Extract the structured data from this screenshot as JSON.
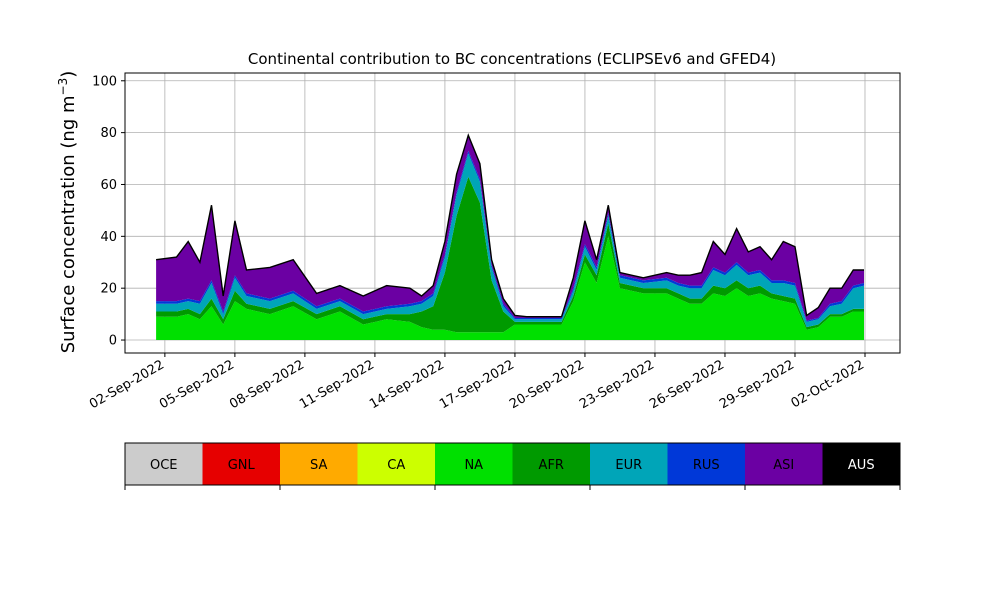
{
  "chart_data": {
    "type": "area",
    "stacked": true,
    "title": "Continental contribution to BC concentrations (ECLIPSEv6 and GFED4)",
    "ylabel_text": "Surface concentration (ng m",
    "ylabel_sup": "−3",
    "ylabel_close": ")",
    "xlabel": "",
    "ylim": [
      -5,
      103
    ],
    "xlim": [
      "2022-08-31T07:00",
      "2022-10-03T12:00"
    ],
    "x_start": "2022-09-01T15:00",
    "x_end": "2022-10-01T23:00",
    "y_ticks": [
      0,
      20,
      40,
      60,
      80,
      100
    ],
    "y_tick_labels": [
      "0",
      "20",
      "40",
      "60",
      "80",
      "100"
    ],
    "x_ticks": [
      "2022-09-02",
      "2022-09-05",
      "2022-09-08",
      "2022-09-11",
      "2022-09-14",
      "2022-09-17",
      "2022-09-20",
      "2022-09-23",
      "2022-09-26",
      "2022-09-29",
      "2022-10-02"
    ],
    "x_tick_labels": [
      "02-Sep-2022",
      "05-Sep-2022",
      "08-Sep-2022",
      "11-Sep-2022",
      "14-Sep-2022",
      "17-Sep-2022",
      "20-Sep-2022",
      "23-Sep-2022",
      "26-Sep-2022",
      "29-Sep-2022",
      "02-Oct-2022"
    ],
    "grid": true,
    "total_line_color": "#000000",
    "series": [
      {
        "name": "NA",
        "color": "#00e000",
        "x": [
          "2022-09-01T15:00",
          "2022-09-02T12:00",
          "2022-09-03T00:00",
          "2022-09-03T12:00",
          "2022-09-04T00:00",
          "2022-09-04T12:00",
          "2022-09-05T00:00",
          "2022-09-05T12:00",
          "2022-09-06T12:00",
          "2022-09-07T12:00",
          "2022-09-08T12:00",
          "2022-09-09T12:00",
          "2022-09-10T12:00",
          "2022-09-11T12:00",
          "2022-09-12T12:00",
          "2022-09-13T00:00",
          "2022-09-13T12:00",
          "2022-09-14T00:00",
          "2022-09-14T12:00",
          "2022-09-15T00:00",
          "2022-09-15T12:00",
          "2022-09-16T00:00",
          "2022-09-16T12:00",
          "2022-09-17T00:00",
          "2022-09-17T12:00",
          "2022-09-18T12:00",
          "2022-09-19T00:00",
          "2022-09-19T12:00",
          "2022-09-20T00:00",
          "2022-09-20T12:00",
          "2022-09-21T00:00",
          "2022-09-21T12:00",
          "2022-09-22T12:00",
          "2022-09-23T12:00",
          "2022-09-24T00:00",
          "2022-09-24T12:00",
          "2022-09-25T00:00",
          "2022-09-25T12:00",
          "2022-09-26T00:00",
          "2022-09-26T12:00",
          "2022-09-27T00:00",
          "2022-09-27T12:00",
          "2022-09-28T00:00",
          "2022-09-28T12:00",
          "2022-09-29T00:00",
          "2022-09-29T12:00",
          "2022-09-30T00:00",
          "2022-09-30T12:00",
          "2022-10-01T00:00",
          "2022-10-01T12:00",
          "2022-10-01T23:00"
        ],
        "values": [
          9,
          9,
          10,
          8,
          13,
          6,
          15,
          12,
          10,
          13,
          8,
          11,
          6,
          8,
          7,
          5,
          4,
          4,
          3,
          3,
          3,
          3,
          3,
          6,
          6,
          6,
          6,
          15,
          30,
          22,
          40,
          20,
          18,
          18,
          16,
          14,
          14,
          18,
          17,
          20,
          17,
          18,
          16,
          15,
          14,
          4,
          5,
          9,
          9,
          11,
          11
        ]
      },
      {
        "name": "AFR",
        "color": "#009a00",
        "x": [
          "2022-09-01T15:00",
          "2022-09-02T12:00",
          "2022-09-03T00:00",
          "2022-09-03T12:00",
          "2022-09-04T00:00",
          "2022-09-04T12:00",
          "2022-09-05T00:00",
          "2022-09-05T12:00",
          "2022-09-06T12:00",
          "2022-09-07T12:00",
          "2022-09-08T12:00",
          "2022-09-09T12:00",
          "2022-09-10T12:00",
          "2022-09-11T12:00",
          "2022-09-12T12:00",
          "2022-09-13T00:00",
          "2022-09-13T12:00",
          "2022-09-14T00:00",
          "2022-09-14T12:00",
          "2022-09-15T00:00",
          "2022-09-15T12:00",
          "2022-09-16T00:00",
          "2022-09-16T12:00",
          "2022-09-17T00:00",
          "2022-09-17T12:00",
          "2022-09-18T12:00",
          "2022-09-19T00:00",
          "2022-09-19T12:00",
          "2022-09-20T00:00",
          "2022-09-20T12:00",
          "2022-09-21T00:00",
          "2022-09-21T12:00",
          "2022-09-22T12:00",
          "2022-09-23T12:00",
          "2022-09-24T00:00",
          "2022-09-24T12:00",
          "2022-09-25T00:00",
          "2022-09-25T12:00",
          "2022-09-26T00:00",
          "2022-09-26T12:00",
          "2022-09-27T00:00",
          "2022-09-27T12:00",
          "2022-09-28T00:00",
          "2022-09-28T12:00",
          "2022-09-29T00:00",
          "2022-09-29T12:00",
          "2022-09-30T00:00",
          "2022-09-30T12:00",
          "2022-10-01T00:00",
          "2022-10-01T12:00",
          "2022-10-01T23:00"
        ],
        "values": [
          2,
          2,
          2,
          2,
          3,
          2,
          4,
          2,
          2,
          2,
          2,
          2,
          2,
          2,
          3,
          6,
          9,
          22,
          45,
          60,
          50,
          20,
          8,
          1,
          1,
          1,
          1,
          2,
          3,
          3,
          5,
          2,
          2,
          2,
          2,
          2,
          2,
          3,
          3,
          3,
          3,
          3,
          2,
          2,
          2,
          1,
          1,
          1,
          1,
          1,
          1
        ]
      },
      {
        "name": "EUR",
        "color": "#00a5b8",
        "x": [
          "2022-09-01T15:00",
          "2022-09-02T12:00",
          "2022-09-03T00:00",
          "2022-09-03T12:00",
          "2022-09-04T00:00",
          "2022-09-04T12:00",
          "2022-09-05T00:00",
          "2022-09-05T12:00",
          "2022-09-06T12:00",
          "2022-09-07T12:00",
          "2022-09-08T12:00",
          "2022-09-09T12:00",
          "2022-09-10T12:00",
          "2022-09-11T12:00",
          "2022-09-12T12:00",
          "2022-09-13T00:00",
          "2022-09-13T12:00",
          "2022-09-14T00:00",
          "2022-09-14T12:00",
          "2022-09-15T00:00",
          "2022-09-15T12:00",
          "2022-09-16T00:00",
          "2022-09-16T12:00",
          "2022-09-17T00:00",
          "2022-09-17T12:00",
          "2022-09-18T12:00",
          "2022-09-19T00:00",
          "2022-09-19T12:00",
          "2022-09-20T00:00",
          "2022-09-20T12:00",
          "2022-09-21T00:00",
          "2022-09-21T12:00",
          "2022-09-22T12:00",
          "2022-09-23T12:00",
          "2022-09-24T00:00",
          "2022-09-24T12:00",
          "2022-09-25T00:00",
          "2022-09-25T12:00",
          "2022-09-26T00:00",
          "2022-09-26T12:00",
          "2022-09-27T00:00",
          "2022-09-27T12:00",
          "2022-09-28T00:00",
          "2022-09-28T12:00",
          "2022-09-29T00:00",
          "2022-09-29T12:00",
          "2022-09-30T00:00",
          "2022-09-30T12:00",
          "2022-10-01T00:00",
          "2022-10-01T12:00",
          "2022-10-01T23:00"
        ],
        "values": [
          3,
          3,
          3,
          4,
          6,
          2,
          5,
          3,
          3,
          3,
          2,
          2,
          2,
          2,
          3,
          3,
          4,
          6,
          8,
          9,
          8,
          5,
          2,
          1,
          1,
          1,
          1,
          2,
          3,
          2,
          3,
          2,
          2,
          3,
          3,
          4,
          4,
          6,
          5,
          6,
          5,
          5,
          4,
          5,
          5,
          2,
          2,
          3,
          4,
          8,
          9
        ]
      },
      {
        "name": "RUS",
        "color": "#0038d8",
        "x": [
          "2022-09-01T15:00",
          "2022-09-02T12:00",
          "2022-09-03T00:00",
          "2022-09-03T12:00",
          "2022-09-04T00:00",
          "2022-09-04T12:00",
          "2022-09-05T00:00",
          "2022-09-05T12:00",
          "2022-09-06T12:00",
          "2022-09-07T12:00",
          "2022-09-08T12:00",
          "2022-09-09T12:00",
          "2022-09-10T12:00",
          "2022-09-11T12:00",
          "2022-09-12T12:00",
          "2022-09-13T00:00",
          "2022-09-13T12:00",
          "2022-09-14T00:00",
          "2022-09-14T12:00",
          "2022-09-15T00:00",
          "2022-09-15T12:00",
          "2022-09-16T00:00",
          "2022-09-16T12:00",
          "2022-09-17T00:00",
          "2022-09-17T12:00",
          "2022-09-18T12:00",
          "2022-09-19T00:00",
          "2022-09-19T12:00",
          "2022-09-20T00:00",
          "2022-09-20T12:00",
          "2022-09-21T00:00",
          "2022-09-21T12:00",
          "2022-09-22T12:00",
          "2022-09-23T12:00",
          "2022-09-24T00:00",
          "2022-09-24T12:00",
          "2022-09-25T00:00",
          "2022-09-25T12:00",
          "2022-09-26T00:00",
          "2022-09-26T12:00",
          "2022-09-27T00:00",
          "2022-09-27T12:00",
          "2022-09-28T00:00",
          "2022-09-28T12:00",
          "2022-09-29T00:00",
          "2022-09-29T12:00",
          "2022-09-30T00:00",
          "2022-09-30T12:00",
          "2022-10-01T00:00",
          "2022-10-01T12:00",
          "2022-10-01T23:00"
        ],
        "values": [
          1,
          1,
          1,
          1,
          1,
          1,
          1,
          1,
          1,
          1,
          1,
          1,
          1,
          1,
          1,
          1,
          1,
          1,
          1,
          1,
          1,
          1,
          1,
          0.5,
          0.5,
          0.5,
          0.5,
          1,
          1,
          1,
          1,
          1,
          1,
          1,
          1,
          1,
          1,
          1,
          1,
          1,
          1,
          1,
          1,
          1,
          1,
          0.5,
          0.5,
          1,
          1,
          1,
          1
        ]
      },
      {
        "name": "ASI",
        "color": "#6b00a3",
        "x": [
          "2022-09-01T15:00",
          "2022-09-02T12:00",
          "2022-09-03T00:00",
          "2022-09-03T12:00",
          "2022-09-04T00:00",
          "2022-09-04T12:00",
          "2022-09-05T00:00",
          "2022-09-05T12:00",
          "2022-09-06T12:00",
          "2022-09-07T12:00",
          "2022-09-08T12:00",
          "2022-09-09T12:00",
          "2022-09-10T12:00",
          "2022-09-11T12:00",
          "2022-09-12T12:00",
          "2022-09-13T00:00",
          "2022-09-13T12:00",
          "2022-09-14T00:00",
          "2022-09-14T12:00",
          "2022-09-15T00:00",
          "2022-09-15T12:00",
          "2022-09-16T00:00",
          "2022-09-16T12:00",
          "2022-09-17T00:00",
          "2022-09-17T12:00",
          "2022-09-18T12:00",
          "2022-09-19T00:00",
          "2022-09-19T12:00",
          "2022-09-20T00:00",
          "2022-09-20T12:00",
          "2022-09-21T00:00",
          "2022-09-21T12:00",
          "2022-09-22T12:00",
          "2022-09-23T12:00",
          "2022-09-24T00:00",
          "2022-09-24T12:00",
          "2022-09-25T00:00",
          "2022-09-25T12:00",
          "2022-09-26T00:00",
          "2022-09-26T12:00",
          "2022-09-27T00:00",
          "2022-09-27T12:00",
          "2022-09-28T00:00",
          "2022-09-28T12:00",
          "2022-09-29T00:00",
          "2022-09-29T12:00",
          "2022-09-30T00:00",
          "2022-09-30T12:00",
          "2022-10-01T00:00",
          "2022-10-01T12:00",
          "2022-10-01T23:00"
        ],
        "values": [
          16,
          17,
          22,
          15,
          29,
          6,
          21,
          9,
          12,
          12,
          5,
          5,
          6,
          8,
          6,
          2,
          3,
          5,
          7,
          6,
          6,
          2,
          2,
          1,
          0.5,
          0.5,
          0.5,
          4,
          9,
          3,
          3,
          1,
          1,
          2,
          3,
          4,
          5,
          10,
          7,
          13,
          8,
          9,
          8,
          15,
          14,
          2,
          4,
          6,
          5,
          6,
          5
        ]
      },
      {
        "name": "AUS",
        "color": "#000000",
        "x": [
          "2022-09-01T15:00",
          "2022-09-02T12:00",
          "2022-09-03T00:00",
          "2022-09-03T12:00",
          "2022-09-04T00:00",
          "2022-09-04T12:00",
          "2022-09-05T00:00",
          "2022-09-05T12:00",
          "2022-09-06T12:00",
          "2022-09-07T12:00",
          "2022-09-08T12:00",
          "2022-09-09T12:00",
          "2022-09-10T12:00",
          "2022-09-11T12:00",
          "2022-09-12T12:00",
          "2022-09-13T00:00",
          "2022-09-13T12:00",
          "2022-09-14T00:00",
          "2022-09-14T12:00",
          "2022-09-15T00:00",
          "2022-09-15T12:00",
          "2022-09-16T00:00",
          "2022-09-16T12:00",
          "2022-09-17T00:00",
          "2022-09-17T12:00",
          "2022-09-18T12:00",
          "2022-09-19T00:00",
          "2022-09-19T12:00",
          "2022-09-20T00:00",
          "2022-09-20T12:00",
          "2022-09-21T00:00",
          "2022-09-21T12:00",
          "2022-09-22T12:00",
          "2022-09-23T12:00",
          "2022-09-24T00:00",
          "2022-09-24T12:00",
          "2022-09-25T00:00",
          "2022-09-25T12:00",
          "2022-09-26T00:00",
          "2022-09-26T12:00",
          "2022-09-27T00:00",
          "2022-09-27T12:00",
          "2022-09-28T00:00",
          "2022-09-28T12:00",
          "2022-09-29T00:00",
          "2022-09-29T12:00",
          "2022-09-30T00:00",
          "2022-09-30T12:00",
          "2022-10-01T00:00",
          "2022-10-01T12:00",
          "2022-10-01T23:00"
        ],
        "values": [
          0,
          0,
          0,
          0,
          0,
          0,
          0,
          0,
          0,
          0,
          0,
          0,
          0,
          0,
          0,
          0,
          0,
          0,
          0,
          0,
          0,
          0,
          0,
          0,
          0,
          0,
          0,
          0,
          0,
          0,
          0,
          0,
          0,
          0,
          0,
          0,
          0,
          0,
          0,
          0,
          0,
          0,
          0,
          0,
          0,
          0,
          0,
          0,
          0,
          0,
          0
        ]
      }
    ],
    "legend": [
      {
        "label": "OCE",
        "color": "#cccccc"
      },
      {
        "label": "GNL",
        "color": "#e60000"
      },
      {
        "label": "SA",
        "color": "#ffaa00"
      },
      {
        "label": "CA",
        "color": "#ccff00"
      },
      {
        "label": "NA",
        "color": "#00e000"
      },
      {
        "label": "AFR",
        "color": "#009a00"
      },
      {
        "label": "EUR",
        "color": "#00a5b8"
      },
      {
        "label": "RUS",
        "color": "#0038d8"
      },
      {
        "label": "ASI",
        "color": "#6b00a3"
      },
      {
        "label": "AUS",
        "color": "#000000"
      }
    ],
    "legend_placement": "bottom"
  }
}
